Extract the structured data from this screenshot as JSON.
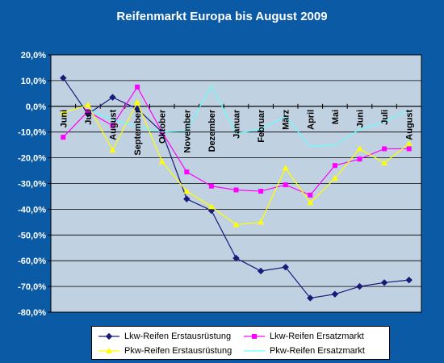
{
  "chart_data": {
    "type": "line",
    "title": "Reifenmarkt Europa bis August 2009",
    "xlabel": "",
    "ylabel": "",
    "categories": [
      "Juni",
      "Juli",
      "August",
      "September",
      "Oktober",
      "November",
      "Dezember",
      "Januar",
      "Februar",
      "März",
      "April",
      "Mai",
      "Juni",
      "Juli",
      "August"
    ],
    "ylim": [
      -80,
      20
    ],
    "yticks": [
      20,
      10,
      0,
      -10,
      -20,
      -30,
      -40,
      -50,
      -60,
      -70,
      -80
    ],
    "ytick_labels": [
      "20,0%",
      "10,0%",
      "0,0%",
      "-10,0%",
      "-20,0%",
      "-30,0%",
      "-40,0%",
      "-50,0%",
      "-60,0%",
      "-70,0%",
      "-80,0%"
    ],
    "grid": true,
    "legend_position": "bottom",
    "series": [
      {
        "name": "Lkw-Reifen Erstausrüstung",
        "color": "#1a1a7a",
        "marker": "diamond",
        "values": [
          11,
          -3,
          3.5,
          -1,
          -10,
          -36,
          -40.5,
          -59,
          -64,
          -62.5,
          -74.5,
          -73,
          -70,
          -68.5,
          -67.5
        ]
      },
      {
        "name": "Lkw-Reifen Ersatzmarkt",
        "color": "#ff00ff",
        "marker": "square",
        "values": [
          -12,
          -2,
          -7.5,
          7.5,
          -10,
          -25.5,
          -31,
          -32.5,
          -33,
          -30.5,
          -34.5,
          -23,
          -20.5,
          -16.5,
          -16.5
        ]
      },
      {
        "name": "Pkw-Reifen Erstausrüstung",
        "color": "#ffff00",
        "marker": "triangle",
        "values": [
          -2.5,
          0.5,
          -17,
          1.5,
          -21.5,
          -33,
          -39,
          -46,
          -45,
          -24,
          -37.5,
          -28,
          -16.5,
          -22,
          -14.5
        ]
      },
      {
        "name": "Pkw-Reifen Ersatzmarkt",
        "color": "#66ffff",
        "marker": "none",
        "values": [
          null,
          -1.5,
          -5,
          -8,
          -10,
          -9.5,
          8,
          -10.5,
          -9,
          -4,
          -15.5,
          -15,
          -9,
          -6,
          -1.5
        ]
      }
    ]
  }
}
